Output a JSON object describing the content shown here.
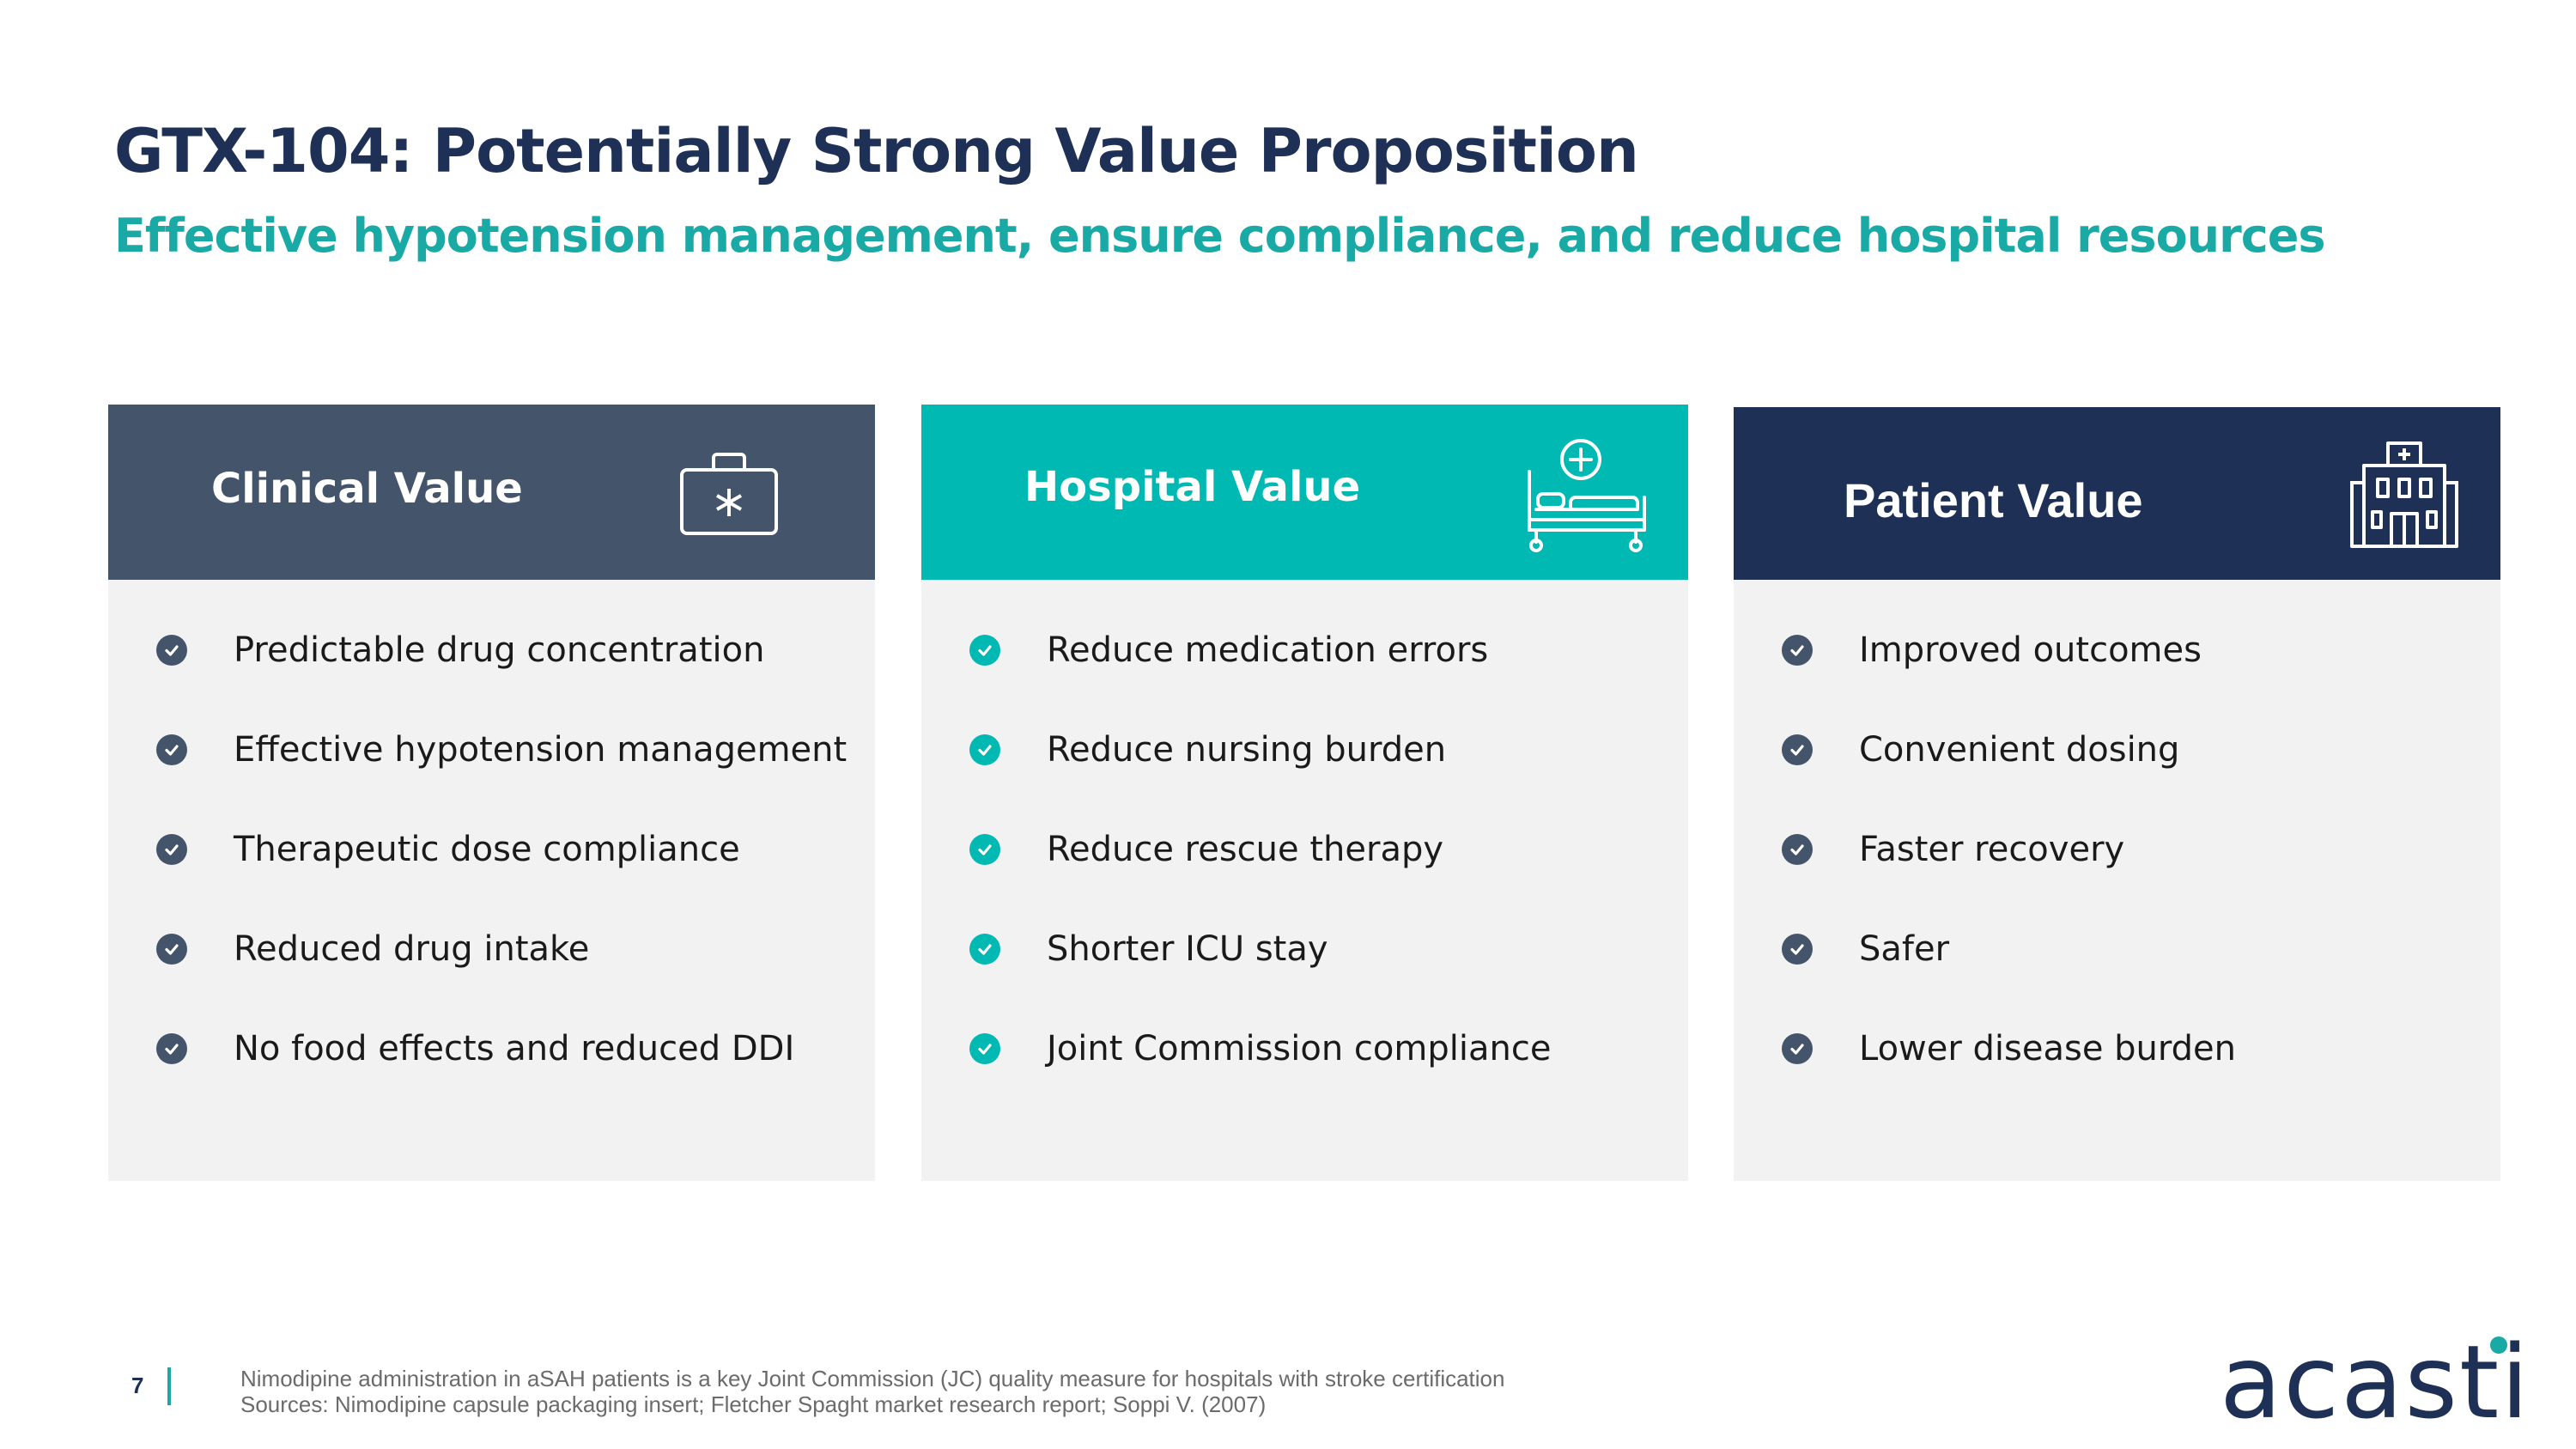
{
  "slide": {
    "title": "GTX-104: Potentially Strong Value Proposition",
    "subtitle": "Effective hypotension management, ensure compliance, and reduce hospital resources"
  },
  "cards": [
    {
      "label": "Clinical Value",
      "icon": "medical-kit-icon",
      "header_color": "#44546a",
      "check_color": "#44546a",
      "items": [
        "Predictable drug concentration",
        "Effective hypotension management",
        "Therapeutic dose compliance",
        "Reduced drug intake",
        "No food effects and reduced DDI"
      ]
    },
    {
      "label": "Hospital Value",
      "icon": "hospital-bed-icon",
      "header_color": "#00b9b2",
      "check_color": "#00b9b2",
      "items": [
        "Reduce medication errors",
        "Reduce nursing burden",
        "Reduce rescue therapy",
        "Shorter ICU stay",
        "Joint Commission compliance"
      ]
    },
    {
      "label": "Patient Value",
      "icon": "hospital-building-icon",
      "header_color": "#1f3057",
      "check_color": "#44546a",
      "items": [
        "Improved outcomes",
        "Convenient dosing",
        "Faster recovery",
        "Safer",
        "Lower disease burden"
      ]
    }
  ],
  "footer": {
    "page_number": "7",
    "note": "Nimodipine administration in aSAH patients is a key Joint Commission (JC) quality measure for hospitals with stroke certification",
    "sources": "Sources: Nimodipine capsule packaging insert; Fletcher Spaght market research report; Soppi V. (2007)",
    "logo": "acasti"
  }
}
